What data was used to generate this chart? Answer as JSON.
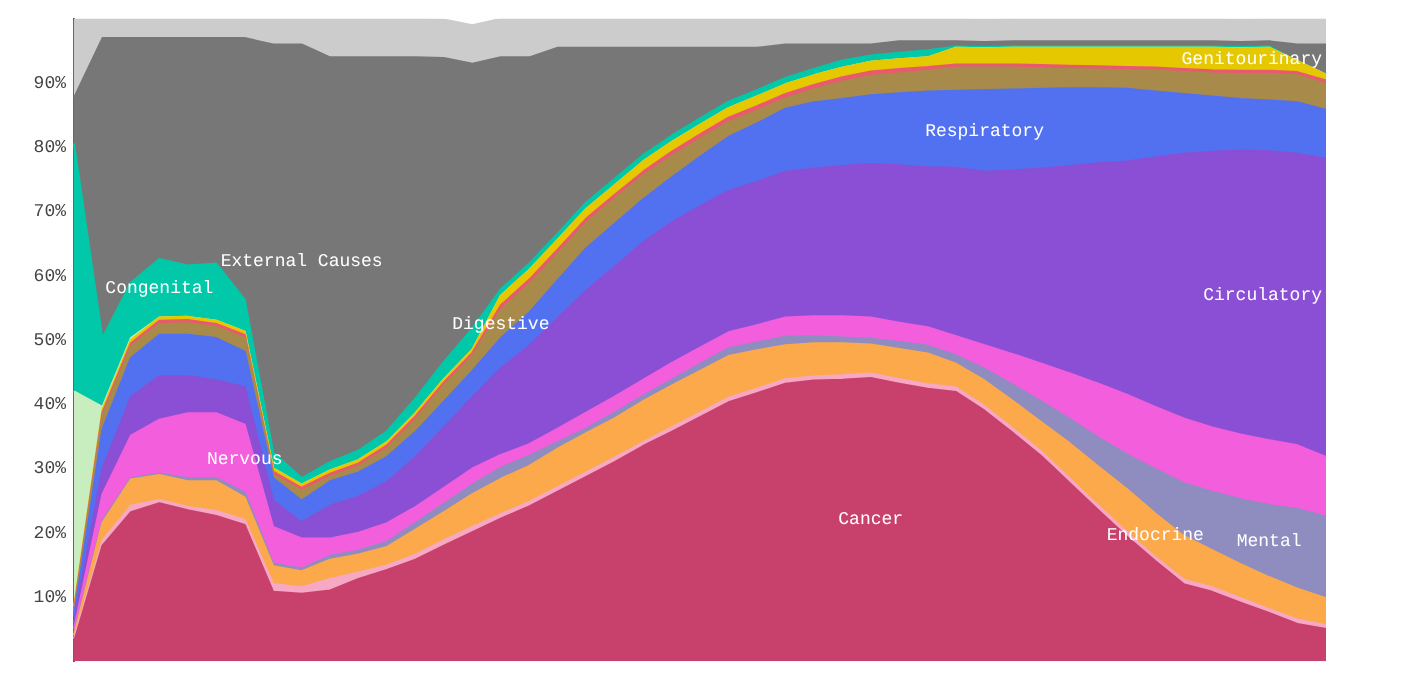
{
  "chart_data": {
    "type": "area",
    "stacked": true,
    "tick_labels": "y",
    "categories": [
      null,
      null,
      null,
      null,
      null,
      null,
      null,
      null,
      null,
      null,
      null,
      null,
      null,
      null,
      null,
      null,
      null,
      null,
      null,
      null,
      null,
      null,
      null,
      null,
      null,
      null,
      null,
      null,
      null,
      null,
      null,
      null,
      null,
      null,
      null,
      null,
      null,
      null,
      null,
      null,
      null,
      null,
      null,
      null,
      null
    ],
    "ylim": [
      0,
      100
    ],
    "yticks": [
      {
        "value": 10,
        "label": "10%"
      },
      {
        "value": 20,
        "label": "20%"
      },
      {
        "value": 30,
        "label": "30%"
      },
      {
        "value": 40,
        "label": "40%"
      },
      {
        "value": 50,
        "label": "50%"
      },
      {
        "value": 60,
        "label": "60%"
      },
      {
        "value": 70,
        "label": "70%"
      },
      {
        "value": 80,
        "label": "80%"
      },
      {
        "value": 90,
        "label": "90%"
      }
    ],
    "series": [
      {
        "name": "Cancer",
        "color": "#c8406c",
        "values": [
          3,
          18,
          23.2,
          24.6,
          23.5,
          22.6,
          21.2,
          10.8,
          10.5,
          11,
          12.8,
          14.2,
          15.8,
          18,
          20.1,
          22.2,
          24.1,
          26.4,
          28.7,
          31,
          33.5,
          35.7,
          38,
          40.3,
          41.7,
          43.2,
          43.7,
          43.8,
          44.1,
          43.2,
          42.4,
          41.9,
          39,
          35.5,
          31.9,
          27.7,
          23.5,
          19.4,
          15.6,
          12,
          10.8,
          9.1,
          7.5,
          5.8,
          5
        ]
      },
      {
        "color": "#f7a8c4",
        "values": [
          0.5,
          0.8,
          1,
          0.5,
          0.5,
          0.8,
          0.8,
          1.2,
          1,
          1.8,
          1,
          0.7,
          0.8,
          0.8,
          0.8,
          0.7,
          0.7,
          0.7,
          0.7,
          0.7,
          0.6,
          0.7,
          0.7,
          0.7,
          0.7,
          0.7,
          0.6,
          0.7,
          0.7,
          0.7,
          0.7,
          0.7,
          0.7,
          0.7,
          0.7,
          0.7,
          0.7,
          0.7,
          0.6,
          0.7,
          0.7,
          0.7,
          0.6,
          0.7,
          0.6
        ]
      },
      {
        "name": "Endocrine",
        "color": "#fba94a",
        "values": [
          0.5,
          2.8,
          4.1,
          3.9,
          4,
          4.6,
          3.5,
          2.8,
          2.5,
          3,
          2.8,
          2.9,
          3.9,
          4.4,
          5.1,
          5.5,
          5.6,
          6,
          6.1,
          6.1,
          6.4,
          6.5,
          6.5,
          6.5,
          6,
          5.3,
          5.2,
          5,
          4.5,
          4.7,
          4.8,
          3.7,
          4,
          4.3,
          4.6,
          5.5,
          6.1,
          6.7,
          6.8,
          6.8,
          5.8,
          5.3,
          5,
          4.8,
          4.2
        ]
      },
      {
        "name": "Mental",
        "color": "#8f8cc0",
        "values": [
          0.2,
          0.3,
          0.2,
          0.2,
          0.5,
          0.5,
          0.7,
          0.4,
          0.4,
          0.6,
          0.6,
          0.8,
          1,
          1.3,
          1.5,
          1.7,
          1.6,
          1,
          0.7,
          0.9,
          0.8,
          0.9,
          1.1,
          1.2,
          1.2,
          1.3,
          1.1,
          0.9,
          0.9,
          1.1,
          1.2,
          1.3,
          1.8,
          2.5,
          3.2,
          3.8,
          4.5,
          5.4,
          6.9,
          8.2,
          9.1,
          10.1,
          11.2,
          12.4,
          12.7
        ]
      },
      {
        "name": "Nervous",
        "color": "#f25edc",
        "values": [
          0.8,
          4.1,
          6.6,
          8.4,
          10.1,
          10.1,
          10.6,
          5.7,
          4.7,
          2.7,
          2.8,
          2.9,
          2.5,
          2.5,
          2.5,
          2,
          1.8,
          2.1,
          2.5,
          2.5,
          2.5,
          2.6,
          2.5,
          2.5,
          2.7,
          3,
          3.1,
          3.3,
          3.3,
          3,
          2.9,
          3,
          3.7,
          4.8,
          5.9,
          7.1,
          8.4,
          9.3,
          9.7,
          10.1,
          10,
          10.1,
          10.1,
          9.9,
          9.3
        ]
      },
      {
        "name": "Circulatory",
        "color": "#8a4fd4",
        "values": [
          1,
          4,
          6,
          6.8,
          5.8,
          5.1,
          5.9,
          4.1,
          2.5,
          5.1,
          5.6,
          6.4,
          7.8,
          9.4,
          11.1,
          13.5,
          15.3,
          17.2,
          19,
          20.2,
          21.4,
          21.9,
          22,
          22,
          22.3,
          22.7,
          23,
          23.4,
          23.9,
          24.5,
          24.9,
          26.2,
          27,
          28.6,
          30.4,
          32.3,
          34.3,
          36.3,
          38.8,
          41.2,
          42.9,
          44.2,
          45,
          45.4,
          46.4
        ]
      },
      {
        "name": "Respiratory",
        "color": "#5271f0",
        "values": [
          1,
          6.1,
          6.1,
          6.4,
          6.4,
          6.6,
          5.5,
          3.5,
          3.4,
          3.8,
          3.8,
          3.9,
          3.9,
          4,
          4.1,
          4.7,
          5.2,
          5.9,
          6.6,
          6.7,
          6.7,
          7,
          7.7,
          8.4,
          9.1,
          9.8,
          10.3,
          10.4,
          10.7,
          11.2,
          11.8,
          12,
          12.7,
          12.6,
          12.4,
          12.1,
          11.7,
          11.3,
          10.3,
          9.3,
          8.6,
          8,
          7.9,
          8,
          7.6
        ]
      },
      {
        "name": "Digestive",
        "color": "#a88b4a",
        "values": [
          0.5,
          2.1,
          1.8,
          1.7,
          1.8,
          1.7,
          2.1,
          0.5,
          1.5,
          0.7,
          0.9,
          1.3,
          1.9,
          2.5,
          2.3,
          4.4,
          4.4,
          4.1,
          3.9,
          3.9,
          3.7,
          3.3,
          2.8,
          2.3,
          2,
          1.6,
          2,
          2.7,
          3,
          3.1,
          3.2,
          3.6,
          3.5,
          3.4,
          3.2,
          3,
          2.9,
          2.9,
          3.2,
          3.4,
          3.6,
          3.9,
          4.1,
          4.2,
          4
        ]
      },
      {
        "color": "#e85a6e",
        "values": [
          0.5,
          0.5,
          0.5,
          0.5,
          0.5,
          0.5,
          0.5,
          0.5,
          0.5,
          0.5,
          0.5,
          0.5,
          0.5,
          0.5,
          0.5,
          0.7,
          0.7,
          0.7,
          0.7,
          0.6,
          0.6,
          0.7,
          0.7,
          0.7,
          0.7,
          0.7,
          0.7,
          0.7,
          0.7,
          0.7,
          0.6,
          0.5,
          0.5,
          0.5,
          0.5,
          0.5,
          0.5,
          0.5,
          0.5,
          0.5,
          0.5,
          0.5,
          0.5,
          0.5,
          0.6
        ]
      },
      {
        "name": "Genitourinary",
        "color": "#e6c800",
        "values": [
          0.5,
          0.5,
          0.5,
          0.5,
          0.5,
          0.5,
          0.5,
          0.5,
          0.5,
          0.5,
          0.5,
          0.5,
          0.5,
          0.5,
          0.5,
          1.5,
          1.5,
          1.5,
          1.5,
          1.5,
          1.6,
          1.5,
          1.5,
          1.5,
          1.5,
          1.5,
          1.5,
          1.5,
          1.5,
          1.5,
          1.5,
          2.6,
          2.5,
          2.6,
          2.7,
          2.8,
          2.9,
          3,
          3.1,
          3.3,
          3.5,
          3.5,
          3.6,
          1.7,
          0.9
        ]
      },
      {
        "color": "#c8eec0",
        "values": [
          33.5,
          0.4,
          0.3,
          0,
          0,
          0,
          0,
          0,
          0,
          0,
          0,
          0,
          0,
          0,
          0,
          0,
          0,
          0,
          0,
          0,
          0,
          0,
          0,
          0,
          0,
          0,
          0,
          0,
          0,
          0,
          0,
          0,
          0,
          0,
          0,
          0,
          0,
          0,
          0,
          0,
          0,
          0,
          0,
          0,
          0
        ]
      },
      {
        "name": "Congenital",
        "color": "#00c8a8",
        "values": [
          38.6,
          10.7,
          8.6,
          9.1,
          8,
          8.9,
          5,
          2.5,
          1,
          1.3,
          1.5,
          1.7,
          2.3,
          2.7,
          3.3,
          1,
          1,
          1,
          1,
          1,
          1,
          1,
          1,
          1,
          1,
          1,
          1,
          1.1,
          1,
          1,
          1.1,
          0.2,
          0.2,
          0.2,
          0.2,
          0.2,
          0.2,
          0.2,
          0.2,
          0.2,
          0.2,
          0.2,
          0.2,
          0,
          0
        ]
      },
      {
        "name": "External Causes",
        "color": "#777777",
        "values": [
          7.1,
          46.7,
          38.1,
          34.4,
          35.4,
          35.1,
          40.7,
          63.5,
          67.5,
          63,
          61.2,
          58.2,
          53.1,
          47.3,
          41.2,
          36.1,
          32.1,
          28.9,
          24.1,
          20.4,
          16.7,
          13.7,
          11,
          8.4,
          6.6,
          5.2,
          3.8,
          2.5,
          1.7,
          1.8,
          1.4,
          0.8,
          0.8,
          0.8,
          0.8,
          0.8,
          0.8,
          0.8,
          0.8,
          0.8,
          0.8,
          0.8,
          0.8,
          2.6,
          4.7
        ]
      },
      {
        "color": "#cccccc",
        "values": [
          12.3,
          3,
          3,
          3,
          3,
          3,
          3,
          4,
          4,
          6,
          6,
          6,
          6,
          6,
          6,
          6,
          6,
          4.5,
          4.5,
          4.5,
          4.5,
          4.5,
          4.5,
          4.5,
          4.5,
          4,
          4,
          4,
          4,
          3.5,
          3.5,
          3.5,
          3.5,
          3.5,
          3.5,
          3.5,
          3.5,
          3.5,
          3.5,
          3.5,
          3.5,
          3.5,
          3.5,
          4,
          4
        ]
      }
    ]
  }
}
